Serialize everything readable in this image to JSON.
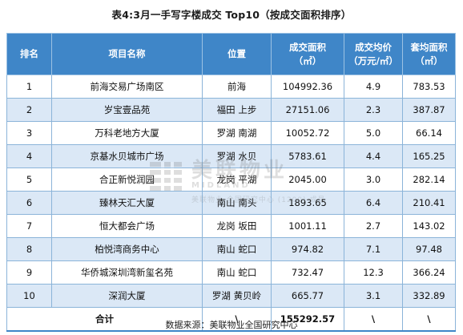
{
  "title": "表4:3月一手写字楼成交 Top10（按成交面积排序）",
  "table": {
    "headers": {
      "rank": "排名",
      "name": "项目名称",
      "location": "位置",
      "area_line1": "成交面积",
      "area_line2": "（㎡）",
      "price_line1": "成交均价",
      "price_line2": "（万元/㎡）",
      "unit_line1": "套均面积",
      "unit_line2": "（㎡）"
    },
    "rows": [
      {
        "rank": "1",
        "name": "前海交易广场南区",
        "location": "前海",
        "area": "104992.36",
        "price": "4.9",
        "unit_area": "783.53"
      },
      {
        "rank": "2",
        "name": "岁宝壹品苑",
        "location": "福田 上步",
        "area": "27151.06",
        "price": "2.3",
        "unit_area": "387.87"
      },
      {
        "rank": "3",
        "name": "万科老地方大厦",
        "location": "罗湖 南湖",
        "area": "10052.72",
        "price": "5.0",
        "unit_area": "66.14"
      },
      {
        "rank": "4",
        "name": "京基水贝城市广场",
        "location": "罗湖 水贝",
        "area": "5783.61",
        "price": "4.4",
        "unit_area": "165.25"
      },
      {
        "rank": "5",
        "name": "合正新悦润园",
        "location": "龙岗 平湖",
        "area": "2045.00",
        "price": "3.0",
        "unit_area": "282.14"
      },
      {
        "rank": "6",
        "name": "臻林天汇大厦",
        "location": "南山 南头",
        "area": "1893.65",
        "price": "6.4",
        "unit_area": "210.41"
      },
      {
        "rank": "7",
        "name": "恒大都会广场",
        "location": "龙岗 坂田",
        "area": "1001.11",
        "price": "2.7",
        "unit_area": "143.02"
      },
      {
        "rank": "8",
        "name": "柏悦湾商务中心",
        "location": "南山 蛇口",
        "area": "974.82",
        "price": "7.1",
        "unit_area": "97.48"
      },
      {
        "rank": "9",
        "name": "华侨城深圳湾新玺名苑",
        "location": "南山 蛇口",
        "area": "732.47",
        "price": "12.3",
        "unit_area": "366.24"
      },
      {
        "rank": "10",
        "name": "深润大厦",
        "location": "罗湖 黄贝岭",
        "area": "665.77",
        "price": "3.1",
        "unit_area": "332.89"
      }
    ],
    "total": {
      "label": "合计",
      "location": "\\",
      "area": "155292.57",
      "price": "\\",
      "unit_area": "\\"
    }
  },
  "watermark": {
    "cn": "美联物业",
    "en": "MIDLAND",
    "sub": "美联物业·全国研究中心 (1200) 成员"
  },
  "source": "数据来源：美联物业全国研究中心"
}
